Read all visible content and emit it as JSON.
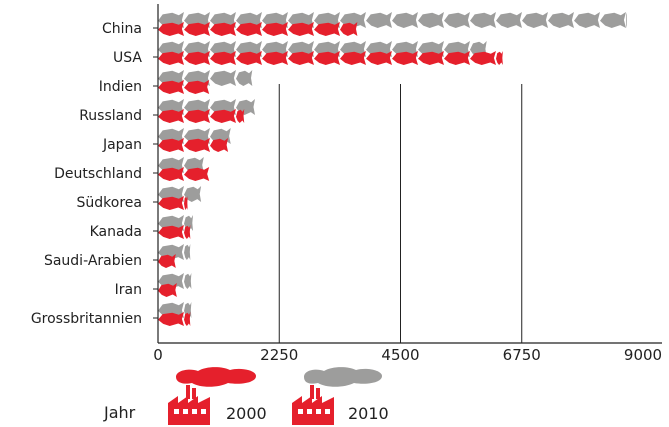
{
  "chart_data": {
    "type": "bar",
    "categories": [
      "China",
      "USA",
      "Indien",
      "Russland",
      "Japan",
      "Deutschland",
      "Südkorea",
      "Kanada",
      "Saudi-Arabien",
      "Iran",
      "Grossbritannien"
    ],
    "series": [
      {
        "name": "2000",
        "values": [
          3700,
          6400,
          950,
          1600,
          1300,
          950,
          550,
          600,
          330,
          350,
          600
        ]
      },
      {
        "name": "2010",
        "values": [
          8700,
          6100,
          1750,
          1800,
          1350,
          850,
          800,
          650,
          600,
          620,
          620
        ]
      }
    ],
    "xticks": [
      "0",
      "2250",
      "4500",
      "6750",
      "9000"
    ],
    "xlim": [
      0,
      9000
    ],
    "colors": {
      "2000": "#e5202c",
      "2010": "#9d9d9c"
    },
    "legend": {
      "label": "Jahr",
      "position": "bottom-left"
    }
  }
}
